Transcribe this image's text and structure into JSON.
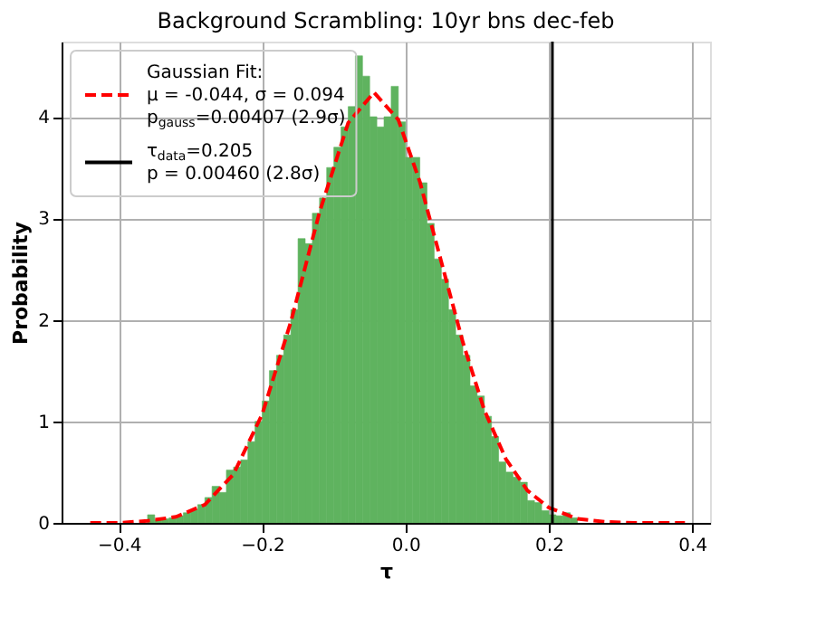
{
  "chart_data": {
    "type": "histogram",
    "title": "Background Scrambling: 10yr bns dec-feb",
    "xlabel": "τ",
    "ylabel": "Probability",
    "bins": [
      -0.36,
      -0.35,
      -0.34,
      -0.33,
      -0.32,
      -0.31,
      -0.3,
      -0.29,
      -0.28,
      -0.27,
      -0.26,
      -0.25,
      -0.24,
      -0.23,
      -0.22,
      -0.21,
      -0.2,
      -0.19,
      -0.18,
      -0.17,
      -0.16,
      -0.15,
      -0.14,
      -0.13,
      -0.12,
      -0.11,
      -0.1,
      -0.09,
      -0.08,
      -0.07,
      -0.06,
      -0.05,
      -0.04,
      -0.03,
      -0.02,
      -0.01,
      0.0,
      0.01,
      0.02,
      0.03,
      0.04,
      0.05,
      0.06,
      0.07,
      0.08,
      0.09,
      0.1,
      0.11,
      0.12,
      0.13,
      0.14,
      0.15,
      0.16,
      0.17,
      0.18,
      0.19,
      0.2,
      0.21,
      0.22,
      0.23,
      0.24
    ],
    "values": [
      0.08,
      0.03,
      0.04,
      0.05,
      0.07,
      0.1,
      0.13,
      0.18,
      0.25,
      0.36,
      0.3,
      0.52,
      0.55,
      0.62,
      0.8,
      1.0,
      1.2,
      1.5,
      1.65,
      1.85,
      2.1,
      2.8,
      2.75,
      3.05,
      3.2,
      3.5,
      3.7,
      3.9,
      4.1,
      4.6,
      4.4,
      4.0,
      3.9,
      4.0,
      4.3,
      3.95,
      3.6,
      3.6,
      3.35,
      2.95,
      2.6,
      2.4,
      2.1,
      1.85,
      1.65,
      1.35,
      1.25,
      1.05,
      0.85,
      0.6,
      0.5,
      0.45,
      0.4,
      0.22,
      0.2,
      0.12,
      0.08,
      0.07,
      0.1,
      0.05
    ],
    "color": "#5fb35f",
    "series": [
      {
        "type": "line",
        "name": "Gaussian Fit:\nμ = -0.044, σ = 0.094\np$_{gauss}$=0.00407 (2.9σ)",
        "color": "#ff0000",
        "line_style": "dashed",
        "x": [
          -0.44,
          -0.4,
          -0.36,
          -0.32,
          -0.28,
          -0.24,
          -0.2,
          -0.16,
          -0.12,
          -0.08,
          -0.044,
          -0.01,
          0.02,
          0.05,
          0.08,
          0.11,
          0.14,
          0.17,
          0.2,
          0.24,
          0.28,
          0.32,
          0.36,
          0.39
        ],
        "values": [
          0.0,
          0.0,
          0.02,
          0.06,
          0.18,
          0.48,
          1.07,
          1.98,
          3.06,
          3.94,
          4.24,
          3.97,
          3.36,
          2.57,
          1.78,
          1.11,
          0.63,
          0.32,
          0.15,
          0.04,
          0.01,
          0.0,
          0.0,
          0.0
        ]
      }
    ],
    "ref_lines": [
      {
        "axis": "x",
        "value": 0.205,
        "label": "τ$_{data}$=0.205\np = 0.00460 (2.8σ)",
        "color": "#000000",
        "line_style": "solid"
      }
    ],
    "xlim": [
      -0.48,
      0.425
    ],
    "ylim": [
      0,
      4.74
    ],
    "xticks": [
      {
        "value": -0.4,
        "label": "−0.4"
      },
      {
        "value": -0.2,
        "label": "−0.2"
      },
      {
        "value": 0,
        "label": "0.0"
      },
      0.2,
      0.4
    ],
    "yticks": [
      0,
      1,
      2,
      3,
      4
    ],
    "grid": true,
    "legend": "top left"
  }
}
